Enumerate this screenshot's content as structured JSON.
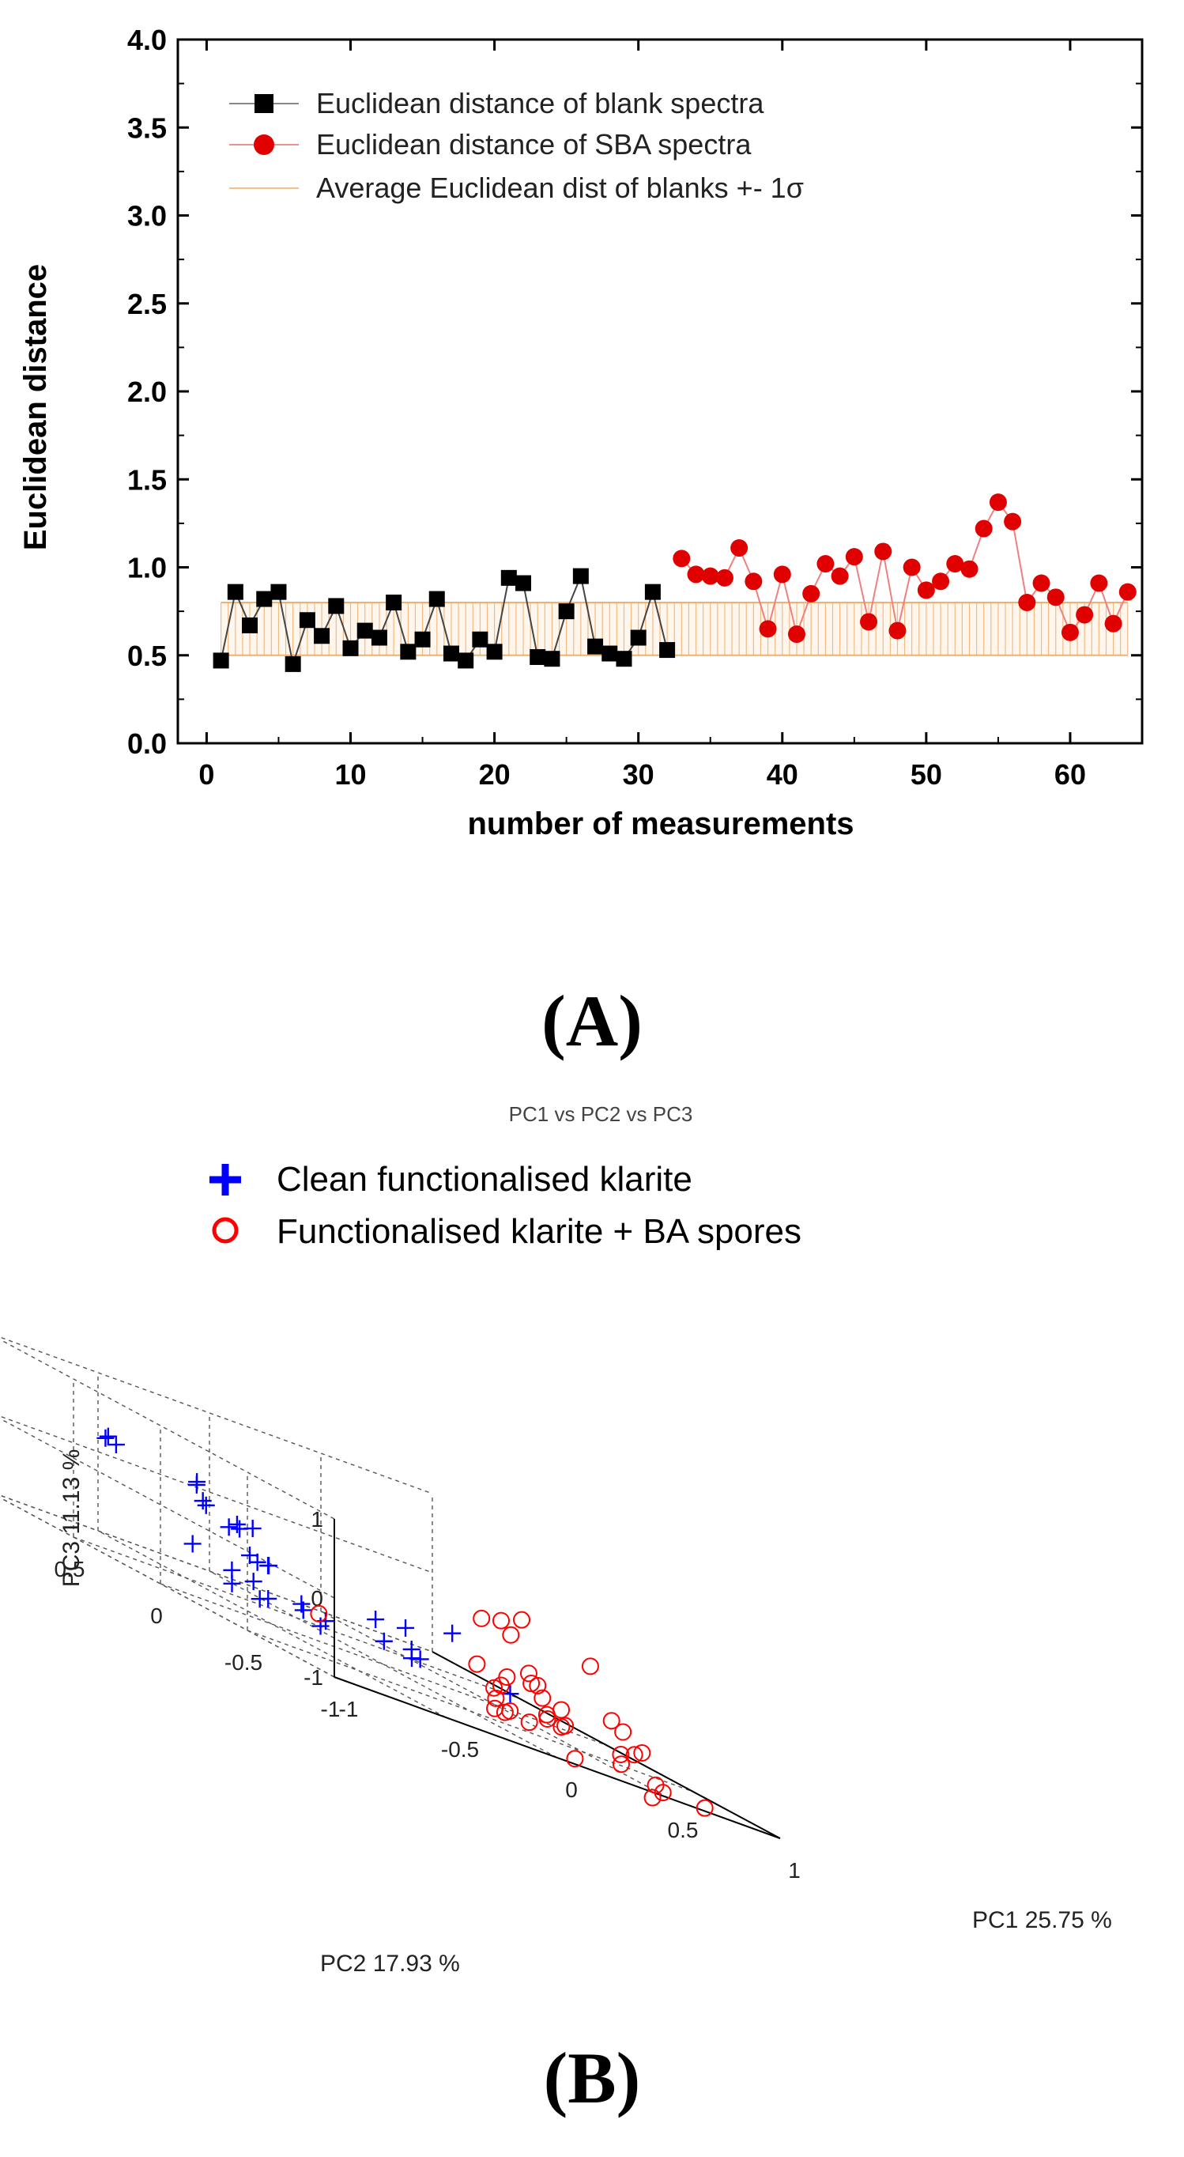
{
  "panels": {
    "a_label": "(A)",
    "b_label": "(B)"
  },
  "chart_data": [
    {
      "type": "line",
      "panel": "A",
      "title": "",
      "xlabel": "number of measurements",
      "ylabel": "Euclidean distance",
      "xlim": [
        -2,
        65
      ],
      "ylim": [
        0,
        4
      ],
      "xticks": [
        0,
        10,
        20,
        30,
        40,
        50,
        60
      ],
      "yticks": [
        0.0,
        0.5,
        1.0,
        1.5,
        2.0,
        2.5,
        3.0,
        3.5,
        4.0
      ],
      "legend_position": "top-left",
      "band": {
        "name": "Average Euclidean dist of blanks +- 1σ",
        "x_start": 1,
        "x_end": 64,
        "low": 0.5,
        "high": 0.8,
        "color": "#f0b070"
      },
      "series": [
        {
          "name": "Euclidean distance of blank spectra",
          "marker": "square",
          "color": "#000000",
          "line_color": "#444444",
          "x": [
            1,
            2,
            3,
            4,
            5,
            6,
            7,
            8,
            9,
            10,
            11,
            12,
            13,
            14,
            15,
            16,
            17,
            18,
            19,
            20,
            21,
            22,
            23,
            24,
            25,
            26,
            27,
            28,
            29,
            30,
            31,
            32
          ],
          "values": [
            0.47,
            0.86,
            0.67,
            0.82,
            0.86,
            0.45,
            0.7,
            0.61,
            0.78,
            0.54,
            0.64,
            0.6,
            0.8,
            0.52,
            0.59,
            0.82,
            0.51,
            0.47,
            0.59,
            0.52,
            0.94,
            0.91,
            0.49,
            0.48,
            0.75,
            0.95,
            0.55,
            0.51,
            0.48,
            0.6,
            0.86,
            0.53
          ]
        },
        {
          "name": "Euclidean distance of SBA spectra",
          "marker": "circle",
          "color": "#e00000",
          "line_color": "#f08080",
          "x": [
            33,
            34,
            35,
            36,
            37,
            38,
            39,
            40,
            41,
            42,
            43,
            44,
            45,
            46,
            47,
            48,
            49,
            50,
            51,
            52,
            53,
            54,
            55,
            56,
            57,
            58,
            59,
            60,
            61,
            62,
            63,
            64
          ],
          "values": [
            1.05,
            0.96,
            0.95,
            0.94,
            1.11,
            0.92,
            0.65,
            0.96,
            0.62,
            0.85,
            1.02,
            0.95,
            1.06,
            0.69,
            1.09,
            0.64,
            1.0,
            0.87,
            0.92,
            1.02,
            0.99,
            1.22,
            1.37,
            1.26,
            0.8,
            0.91,
            0.83,
            0.63,
            0.73,
            0.91,
            0.68,
            0.86
          ]
        }
      ]
    },
    {
      "type": "scatter",
      "panel": "B",
      "projection": "3d",
      "title": "PC1 vs PC2 vs PC3",
      "xlabel": "PC1 25.75 %",
      "ylabel": "PC2 17.93 %",
      "zlabel": "PC3 11.13 %",
      "xlim": [
        -1,
        1
      ],
      "ylim": [
        -1,
        1
      ],
      "zlim": [
        -1,
        1
      ],
      "xticks": [
        -1,
        -0.5,
        0,
        0.5,
        1
      ],
      "yticks": [
        -1,
        -0.5,
        0,
        0.5,
        1
      ],
      "zticks": [
        -1,
        0,
        1
      ],
      "legend_position": "top-left",
      "series": [
        {
          "name": "Clean functionalised klarite",
          "marker": "plus",
          "color": "#0000ff",
          "points": [
            [
              -0.86,
              0.48,
              0.44
            ],
            [
              -0.88,
              0.47,
              0.41
            ],
            [
              -0.84,
              0.46,
              0.38
            ],
            [
              -0.58,
              0.33,
              0.29
            ],
            [
              -0.54,
              0.38,
              0.31
            ],
            [
              -0.56,
              0.32,
              0.12
            ],
            [
              -0.53,
              0.34,
              0.07
            ],
            [
              -0.49,
              0.26,
              -0.07
            ],
            [
              -0.43,
              0.29,
              -0.01
            ],
            [
              -0.45,
              0.25,
              -0.04
            ],
            [
              -0.36,
              0.29,
              0.01
            ],
            [
              -0.42,
              0.23,
              -0.32
            ],
            [
              -0.37,
              0.25,
              -0.38
            ],
            [
              -0.33,
              0.24,
              -0.37
            ],
            [
              -0.28,
              0.3,
              -0.39
            ],
            [
              -0.5,
              0.23,
              -0.59
            ],
            [
              -0.45,
              0.17,
              -0.61
            ],
            [
              -0.64,
              0.05,
              -0.69
            ],
            [
              -0.77,
              0.11,
              -0.39
            ],
            [
              -0.57,
              -0.02,
              -0.73
            ],
            [
              -0.43,
              -0.08,
              -0.58
            ],
            [
              -0.32,
              0.05,
              -0.7
            ],
            [
              -0.29,
              -0.04,
              -0.7
            ],
            [
              -0.23,
              -0.25,
              -0.37
            ],
            [
              -0.12,
              -0.55,
              -0.08
            ],
            [
              -0.24,
              -0.47,
              -0.5
            ],
            [
              -0.17,
              -0.43,
              -0.6
            ],
            [
              -0.27,
              -0.35,
              -0.57
            ],
            [
              0.14,
              -0.55,
              -0.58
            ],
            [
              -0.08,
              -0.23,
              -0.35
            ],
            [
              -0.2,
              -0.42,
              -0.63
            ],
            [
              -0.43,
              -0.19,
              -0.73
            ],
            [
              -0.47,
              0.06,
              -0.72
            ]
          ]
        },
        {
          "name": "Functionalised klarite + BA spores",
          "marker": "circle-open",
          "color": "#ff0000",
          "points": [
            [
              0.3,
              -0.18,
              0.1
            ],
            [
              0.31,
              -0.28,
              0.2
            ],
            [
              0.26,
              -0.4,
              0.11
            ],
            [
              0.41,
              -0.27,
              0.3
            ],
            [
              0.57,
              -0.46,
              0.1
            ],
            [
              0.54,
              -0.62,
              -0.43
            ],
            [
              0.27,
              -0.49,
              -0.26
            ],
            [
              0.49,
              -0.75,
              -0.47
            ],
            [
              0.25,
              -0.53,
              -0.36
            ],
            [
              0.24,
              -0.58,
              -0.34
            ],
            [
              0.1,
              -0.41,
              -0.41
            ],
            [
              0.18,
              -0.48,
              -0.41
            ],
            [
              0.23,
              -0.62,
              -0.46
            ],
            [
              0.13,
              -0.51,
              -0.53
            ],
            [
              0.33,
              -0.6,
              -0.53
            ],
            [
              0.3,
              -0.64,
              -0.73
            ],
            [
              0.56,
              -0.77,
              -0.64
            ],
            [
              0.51,
              -0.79,
              -0.69
            ],
            [
              0.49,
              -0.74,
              -0.89
            ],
            [
              0.13,
              -0.47,
              -0.61
            ],
            [
              0.34,
              -0.61,
              -0.71
            ],
            [
              0.59,
              -0.81,
              -0.97
            ],
            [
              0.74,
              -0.9,
              -1.0
            ],
            [
              -0.01,
              -0.66,
              -0.66
            ],
            [
              0.14,
              -0.66,
              -0.81
            ],
            [
              0.04,
              -0.59,
              -0.82
            ],
            [
              0.22,
              -0.82,
              -1.0
            ],
            [
              -0.5,
              -0.27,
              -0.55
            ],
            [
              0.41,
              -0.84,
              -0.73
            ],
            [
              0.19,
              -0.7,
              -0.67
            ],
            [
              0.49,
              -0.92,
              -1.1
            ],
            [
              0.56,
              -0.89,
              -1.0
            ],
            [
              0.25,
              -0.62,
              -0.65
            ],
            [
              0.1,
              -0.6,
              -0.78
            ],
            [
              0.14,
              -0.52,
              -0.85
            ]
          ]
        }
      ]
    }
  ]
}
